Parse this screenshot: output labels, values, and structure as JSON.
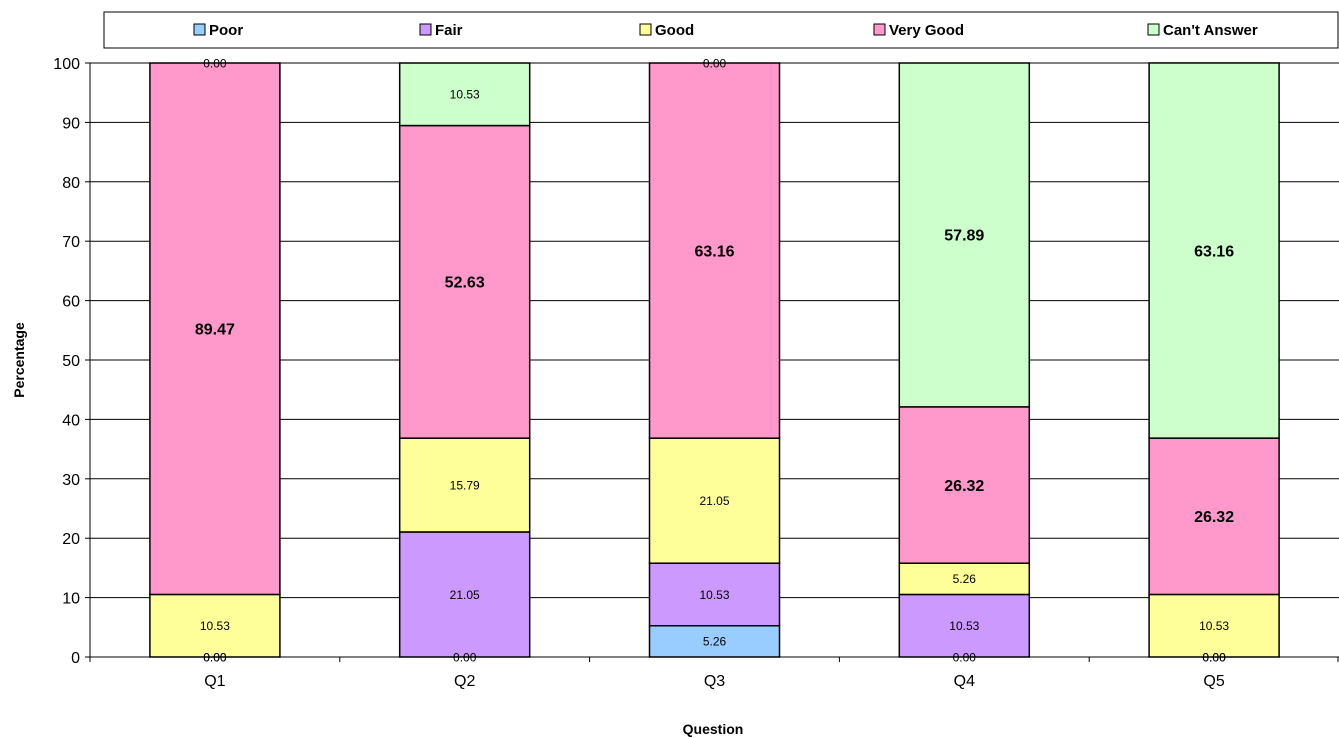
{
  "chart_data": {
    "type": "bar",
    "stacked": true,
    "title": "",
    "xlabel": "Question",
    "ylabel": "Percentage",
    "ylim": [
      0,
      100
    ],
    "yticks": [
      0,
      10,
      20,
      30,
      40,
      50,
      60,
      70,
      80,
      90,
      100
    ],
    "categories": [
      "Q1",
      "Q2",
      "Q3",
      "Q4",
      "Q5"
    ],
    "legend_position": "top",
    "grid": true,
    "series": [
      {
        "name": "Poor",
        "color": "#99CCFF",
        "values": [
          0.0,
          0.0,
          5.26,
          0.0,
          0.0
        ]
      },
      {
        "name": "Fair",
        "color": "#CC99FF",
        "values": [
          0.0,
          21.05,
          10.53,
          10.53,
          0.0
        ]
      },
      {
        "name": "Good",
        "color": "#FFFF99",
        "values": [
          10.53,
          15.79,
          21.05,
          5.26,
          10.53
        ]
      },
      {
        "name": "Very Good",
        "color": "#FF99CC",
        "values": [
          89.47,
          52.63,
          63.16,
          26.32,
          26.32
        ]
      },
      {
        "name": "Can't Answer",
        "color": "#CCFFCC",
        "values": [
          0.0,
          10.53,
          0.0,
          57.89,
          63.16
        ]
      }
    ]
  }
}
